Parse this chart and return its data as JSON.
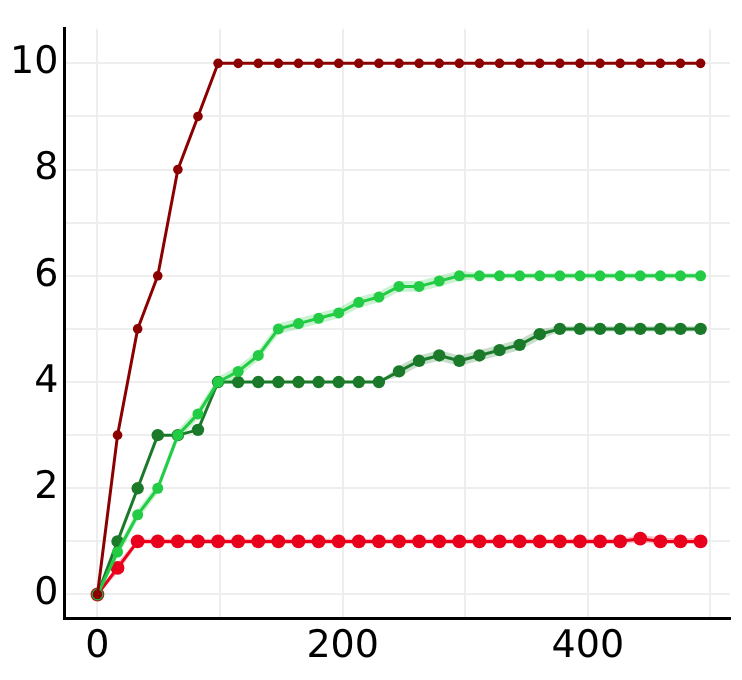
{
  "chart_data": {
    "type": "line",
    "x": [
      0,
      16.4,
      32.8,
      49.2,
      65.6,
      82,
      98.4,
      114.8,
      131.2,
      147.6,
      164,
      180.4,
      196.8,
      213.2,
      229.6,
      246,
      262.4,
      278.8,
      295.2,
      311.6,
      328,
      344.4,
      360.8,
      377.2,
      393.6,
      410,
      426.4,
      442.8,
      459.2,
      475.6,
      492
    ],
    "series": [
      {
        "color": "#8b0000",
        "values": [
          0,
          3,
          5,
          6,
          8,
          9,
          10,
          10,
          10,
          10,
          10,
          10,
          10,
          10,
          10,
          10,
          10,
          10,
          10,
          10,
          10,
          10,
          10,
          10,
          10,
          10,
          10,
          10,
          10,
          10,
          10
        ]
      },
      {
        "color": "#22cc44",
        "values": [
          0,
          0.8,
          1.5,
          2,
          3,
          3.4,
          4,
          4.2,
          4.5,
          5,
          5.1,
          5.2,
          5.3,
          5.5,
          5.6,
          5.8,
          5.8,
          5.9,
          6,
          6,
          6,
          6,
          6,
          6,
          6,
          6,
          6,
          6,
          6,
          6,
          6
        ],
        "lower": [
          0,
          0.7,
          1.4,
          1.9,
          2.9,
          3.3,
          3.9,
          4.1,
          4.4,
          4.9,
          5,
          5.1,
          5.2,
          5.4,
          5.5,
          5.7,
          5.7,
          5.8,
          5.9,
          5.95,
          5.95,
          5.95,
          5.95,
          5.95,
          5.95,
          5.95,
          5.95,
          5.95,
          5.95,
          5.95,
          5.95
        ],
        "upper": [
          0,
          0.9,
          1.6,
          2.1,
          3.1,
          3.5,
          4.1,
          4.3,
          4.6,
          5.1,
          5.2,
          5.3,
          5.4,
          5.6,
          5.7,
          5.9,
          5.9,
          6,
          6.1,
          6.05,
          6.05,
          6.05,
          6.05,
          6.05,
          6.05,
          6.05,
          6.05,
          6.05,
          6.05,
          6.05,
          6.05
        ]
      },
      {
        "color": "#1a7a2a",
        "values": [
          0,
          1,
          2,
          3,
          3,
          3.1,
          4,
          4,
          4,
          4,
          4,
          4,
          4,
          4,
          4,
          4.2,
          4.4,
          4.5,
          4.4,
          4.5,
          4.6,
          4.7,
          4.9,
          5,
          5,
          5,
          5,
          5,
          5,
          5,
          5
        ],
        "lower": [
          0,
          1,
          2,
          3,
          3,
          3.1,
          4,
          4,
          4,
          4,
          4,
          4,
          4,
          4,
          4,
          4.1,
          4.3,
          4.4,
          4.3,
          4.4,
          4.5,
          4.6,
          4.8,
          4.95,
          4.95,
          4.95,
          4.95,
          4.95,
          4.95,
          4.95,
          4.95
        ],
        "upper": [
          0,
          1,
          2,
          3,
          3,
          3.1,
          4,
          4,
          4,
          4,
          4,
          4,
          4,
          4,
          4,
          4.3,
          4.5,
          4.6,
          4.5,
          4.6,
          4.7,
          4.8,
          5,
          5.05,
          5.05,
          5.05,
          5.05,
          5.05,
          5.05,
          5.05,
          5.05
        ]
      },
      {
        "color": "#e8001c",
        "values": [
          0,
          0.5,
          1,
          1,
          1,
          1,
          1,
          1,
          1,
          1,
          1,
          1,
          1,
          1,
          1,
          1,
          1,
          1,
          1,
          1,
          1,
          1,
          1,
          1,
          1,
          1,
          1,
          1.05,
          1,
          1,
          1
        ],
        "lower": [
          0,
          0.4,
          0.95,
          0.95,
          0.95,
          0.95,
          0.95,
          0.95,
          0.95,
          0.95,
          0.95,
          0.95,
          0.95,
          0.95,
          0.95,
          0.95,
          0.95,
          0.95,
          0.95,
          0.95,
          0.95,
          0.95,
          0.95,
          0.95,
          0.95,
          0.95,
          0.95,
          0.98,
          0.95,
          0.95,
          0.95
        ],
        "upper": [
          0,
          0.6,
          1.05,
          1.05,
          1.05,
          1.05,
          1.05,
          1.05,
          1.05,
          1.05,
          1.05,
          1.05,
          1.05,
          1.05,
          1.05,
          1.05,
          1.05,
          1.05,
          1.05,
          1.05,
          1.05,
          1.05,
          1.05,
          1.05,
          1.05,
          1.05,
          1.05,
          1.12,
          1.08,
          1.05,
          1.08
        ]
      }
    ],
    "xlim": [
      -27,
      516
    ],
    "ylim": [
      -0.45,
      10.65
    ],
    "xticks": [
      0,
      {
        "value": 100,
        "label": null
      },
      200,
      {
        "value": 300,
        "label": null
      },
      400,
      {
        "value": 500,
        "label": null
      }
    ],
    "yticks": [
      0,
      {
        "value": 1,
        "label": null
      },
      2,
      {
        "value": 3,
        "label": null
      },
      4,
      {
        "value": 5,
        "label": null
      },
      6,
      {
        "value": 7,
        "label": null
      },
      8,
      {
        "value": 9,
        "label": null
      },
      10
    ],
    "grid": true,
    "marker": "circle",
    "line_style": "solid",
    "legend": false
  }
}
